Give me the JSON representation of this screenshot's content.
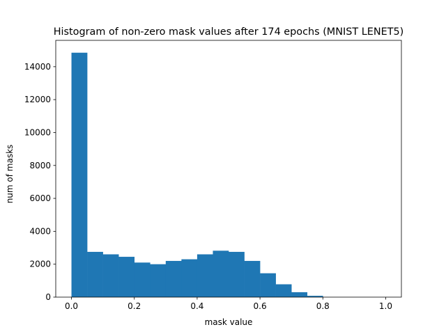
{
  "chart_data": {
    "type": "bar",
    "title": "Histogram of non-zero mask values after 174 epochs (MNIST LENET5)",
    "xlabel": "mask value",
    "ylabel": "num of masks",
    "xlim": [
      -0.05,
      1.05
    ],
    "ylim": [
      0,
      15600
    ],
    "bin_width": 0.05,
    "bin_starts": [
      0.0,
      0.05,
      0.1,
      0.15,
      0.2,
      0.25,
      0.3,
      0.35,
      0.4,
      0.45,
      0.5,
      0.55,
      0.6,
      0.65,
      0.7,
      0.75,
      0.8,
      0.85,
      0.9,
      0.95
    ],
    "values": [
      14850,
      2750,
      2600,
      2450,
      2100,
      2000,
      2200,
      2300,
      2600,
      2820,
      2750,
      2200,
      1450,
      780,
      300,
      80,
      0,
      0,
      0,
      0
    ],
    "xticks": [
      0.0,
      0.2,
      0.4,
      0.6,
      0.8,
      1.0
    ],
    "xtick_labels": [
      "0.0",
      "0.2",
      "0.4",
      "0.6",
      "0.8",
      "1.0"
    ],
    "yticks": [
      0,
      2000,
      4000,
      6000,
      8000,
      10000,
      12000,
      14000
    ],
    "ytick_labels": [
      "0",
      "2000",
      "4000",
      "6000",
      "8000",
      "10000",
      "12000",
      "14000"
    ],
    "bar_color": "#1f77b4",
    "grid": false,
    "legend": "none"
  }
}
